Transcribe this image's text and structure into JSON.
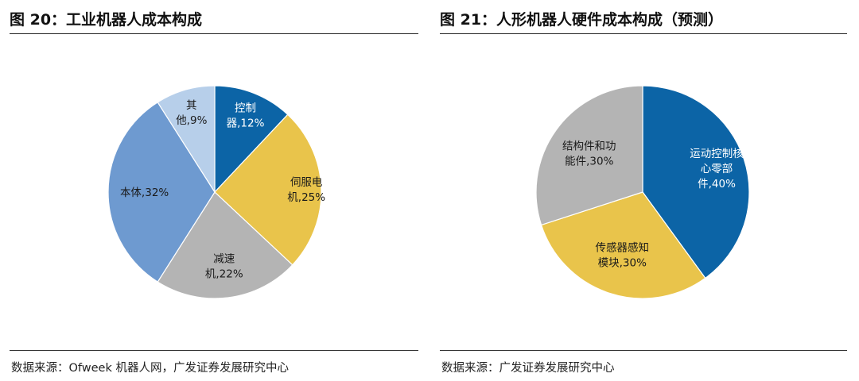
{
  "left": {
    "title": "图 20：工业机器人成本构成",
    "source": "数据来源：Ofweek 机器人网，广发证券发展研究中心"
  },
  "right": {
    "title": "图 21：人形机器人硬件成本构成（预测）",
    "source": "数据来源：广发证券发展研究中心"
  },
  "chart_data": [
    {
      "type": "pie",
      "categories": [
        "控制器",
        "伺服电机",
        "减速机",
        "本体",
        "其他"
      ],
      "values": [
        12,
        25,
        22,
        32,
        9
      ],
      "unit": "%",
      "data_labels": [
        [
          "控制",
          "器,12%"
        ],
        [
          "伺服电",
          "机,25%"
        ],
        [
          "减速",
          "机,22%"
        ],
        [
          "本体,32%"
        ],
        [
          "其",
          "他,9%"
        ]
      ],
      "colors": [
        "#0C64A6",
        "#E9C44B",
        "#B4B4B4",
        "#6E9AD0",
        "#B7CFEA"
      ],
      "label_colors": [
        "#ffffff",
        "#1a1a1a",
        "#1a1a1a",
        "#1a1a1a",
        "#1a1a1a"
      ],
      "start": "12 o'clock",
      "direction": "clockwise"
    },
    {
      "type": "pie",
      "categories": [
        "运动控制核心零部件",
        "传感器感知模块",
        "结构件和功能件"
      ],
      "values": [
        40,
        30,
        30
      ],
      "unit": "%",
      "data_labels": [
        [
          "运动控制核",
          "心零部",
          "件,40%"
        ],
        [
          "传感器感知",
          "模块,30%"
        ],
        [
          "结构件和功",
          "能件,30%"
        ]
      ],
      "colors": [
        "#0C64A6",
        "#E9C44B",
        "#B4B4B4"
      ],
      "label_colors": [
        "#ffffff",
        "#1a1a1a",
        "#1a1a1a"
      ],
      "start": "12 o'clock",
      "direction": "clockwise"
    }
  ]
}
